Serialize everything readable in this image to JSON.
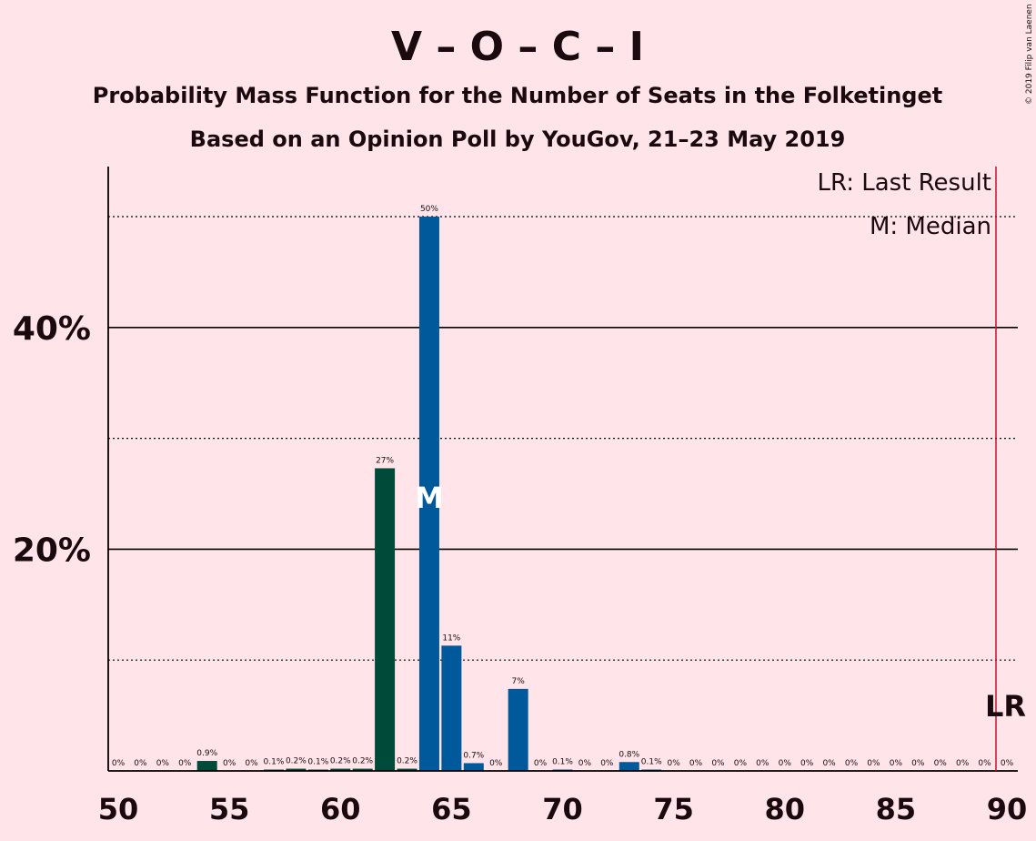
{
  "copyright": "© 2019 Filip van Laenen",
  "chart_data": {
    "type": "bar",
    "title": "V – O – C – I",
    "subtitle": "Probability Mass Function for the Number of Seats in the Folketinget",
    "subtitle2": "Based on an Opinion Poll by YouGov, 21–23 May 2019",
    "xlabel": "",
    "ylabel": "",
    "xlim": [
      50,
      90
    ],
    "ylim": [
      0,
      54
    ],
    "x_ticks": [
      50,
      55,
      60,
      65,
      70,
      75,
      80,
      85,
      90
    ],
    "y_ticks_solid": [
      20,
      40
    ],
    "y_tick_labels": [
      "20%",
      "40%"
    ],
    "y_dotted_lines": [
      10,
      30,
      50
    ],
    "last_result_seat": 90,
    "median_seat": 64,
    "median_marker": "M",
    "last_result_marker": "LR",
    "legend": [
      "LR: Last Result",
      "M: Median"
    ],
    "colors": {
      "left_of_median": "#004A3A",
      "median_and_right": "#00599A",
      "last_result_line": "#C8102E",
      "background": "#FFE4E9"
    },
    "x": [
      50,
      51,
      52,
      53,
      54,
      55,
      56,
      57,
      58,
      59,
      60,
      61,
      62,
      63,
      64,
      65,
      66,
      67,
      68,
      69,
      70,
      71,
      72,
      73,
      74,
      75,
      76,
      77,
      78,
      79,
      80,
      81,
      82,
      83,
      84,
      85,
      86,
      87,
      88,
      89,
      90
    ],
    "values": [
      0,
      0,
      0,
      0,
      0.9,
      0,
      0,
      0.1,
      0.2,
      0.1,
      0.2,
      0.2,
      27.3,
      0.2,
      50,
      11.3,
      0.7,
      0,
      7.4,
      0,
      0.1,
      0,
      0,
      0.8,
      0.1,
      0,
      0,
      0,
      0,
      0,
      0,
      0,
      0,
      0,
      0,
      0,
      0,
      0,
      0,
      0,
      0
    ],
    "labels": [
      "0%",
      "0%",
      "0%",
      "0%",
      "0.9%",
      "0%",
      "0%",
      "0.1%",
      "0.2%",
      "0.1%",
      "0.2%",
      "0.2%",
      "27%",
      "0.2%",
      "50%",
      "11%",
      "0.7%",
      "0%",
      "7%",
      "0%",
      "0.1%",
      "0%",
      "0%",
      "0.8%",
      "0.1%",
      "0%",
      "0%",
      "0%",
      "0%",
      "0%",
      "0%",
      "0%",
      "0%",
      "0%",
      "0%",
      "0%",
      "0%",
      "0%",
      "0%",
      "0%",
      "0%"
    ]
  }
}
